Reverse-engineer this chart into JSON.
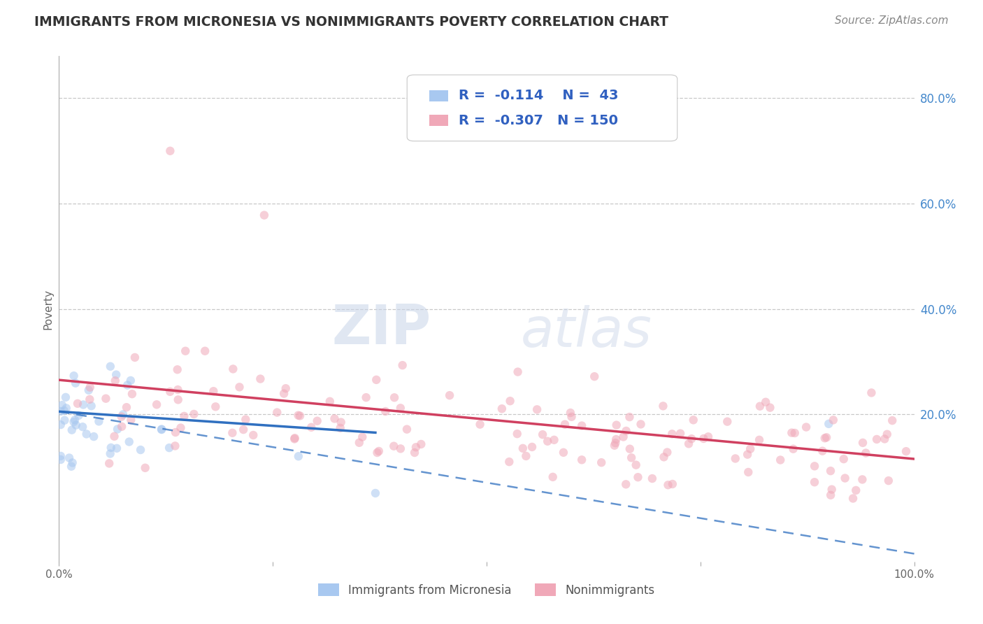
{
  "title": "IMMIGRANTS FROM MICRONESIA VS NONIMMIGRANTS POVERTY CORRELATION CHART",
  "source": "Source: ZipAtlas.com",
  "ylabel": "Poverty",
  "legend_label1": "Immigrants from Micronesia",
  "legend_label2": "Nonimmigrants",
  "r1": -0.114,
  "n1": 43,
  "r2": -0.307,
  "n2": 150,
  "color1": "#a8c8f0",
  "color2": "#f0a8b8",
  "trendline1_color": "#3070c0",
  "trendline2_color": "#d04060",
  "right_axis_color": "#4488cc",
  "title_color": "#333333",
  "source_color": "#888888",
  "legend_text_color": "#3060c0",
  "watermark_zip": "ZIP",
  "watermark_atlas": "atlas",
  "background_color": "#ffffff",
  "xlim": [
    0,
    1
  ],
  "ylim": [
    -0.08,
    0.88
  ],
  "right_yticks": [
    0.2,
    0.4,
    0.6,
    0.8
  ],
  "right_yticklabels": [
    "20.0%",
    "40.0%",
    "60.0%",
    "80.0%"
  ],
  "xticks": [
    0,
    0.25,
    0.5,
    0.75,
    1.0
  ],
  "xticklabels": [
    "0.0%",
    "",
    "",
    "",
    "100.0%"
  ],
  "grid_color": "#c8c8c8",
  "scatter_alpha": 0.55,
  "scatter_size": 80,
  "trend1_x0": 0.0,
  "trend1_x1": 0.37,
  "trend1_y0": 0.205,
  "trend1_y1": 0.165,
  "trend1_dash_x0": 0.0,
  "trend1_dash_x1": 1.0,
  "trend1_dash_y0": 0.205,
  "trend1_dash_y1": -0.065,
  "trend2_x0": 0.0,
  "trend2_x1": 1.0,
  "trend2_y0": 0.265,
  "trend2_y1": 0.115
}
